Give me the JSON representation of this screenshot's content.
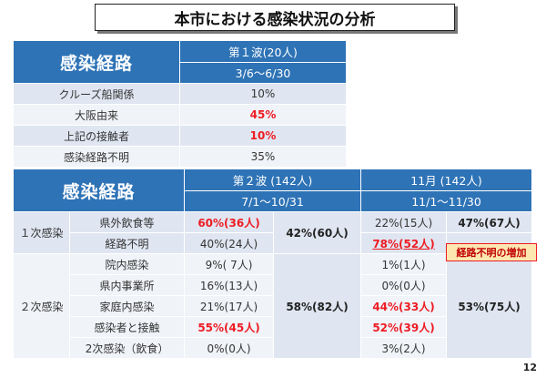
{
  "title": "本市における感染状況の分析",
  "table1": {
    "route_header": "感染経路",
    "wave_header": "第１波(20人)",
    "period": "3/6～6/30",
    "rows": [
      {
        "label": "クルーズ船関係",
        "value": "10%"
      },
      {
        "label": "大阪由来",
        "value": "45%"
      },
      {
        "label": "上記の接触者",
        "value": "10%"
      },
      {
        "label": "感染経路不明",
        "value": "35%"
      }
    ]
  },
  "table2": {
    "route_header": "感染経路",
    "wave2_header": "第２波 (142人)",
    "wave2_period": "7/1～10/31",
    "nov_header": "11月 (142人)",
    "nov_period": "11/1～11/30",
    "groups": [
      {
        "name": "１次感染",
        "wave2_total": "42%(60人)",
        "nov_total": "47%(67人)"
      },
      {
        "name": "２次感染",
        "wave2_total": "58%(82人)",
        "nov_total": "53%(75人)"
      }
    ],
    "rows": [
      {
        "sub": "県外飲食等",
        "w2": "60%(36人)",
        "nov": "22%(15人)"
      },
      {
        "sub": "経路不明",
        "w2": "40%(24人)",
        "nov": "78%(52人)"
      },
      {
        "sub": "院内感染",
        "w2": "9%( 7人)",
        "nov": "1%(1人)"
      },
      {
        "sub": "県内事業所",
        "w2": "16%(13人)",
        "nov": "0%(0人)"
      },
      {
        "sub": "家庭内感染",
        "w2": "21%(17人)",
        "nov": "44%(33人)"
      },
      {
        "sub": "感染者と接触",
        "w2": "55%(45人)",
        "nov": "52%(39人)"
      },
      {
        "sub": "2次感染（飲食）",
        "w2": "0%(0人)",
        "nov": "3%(2人)"
      }
    ]
  },
  "callout": "経路不明の増加",
  "page_number": "12",
  "colors": {
    "header_blue": "#2e73b6",
    "row_light": "#dfe6f1",
    "row_lighter": "#f0f3f8",
    "accent_red": "#ee1c24"
  }
}
